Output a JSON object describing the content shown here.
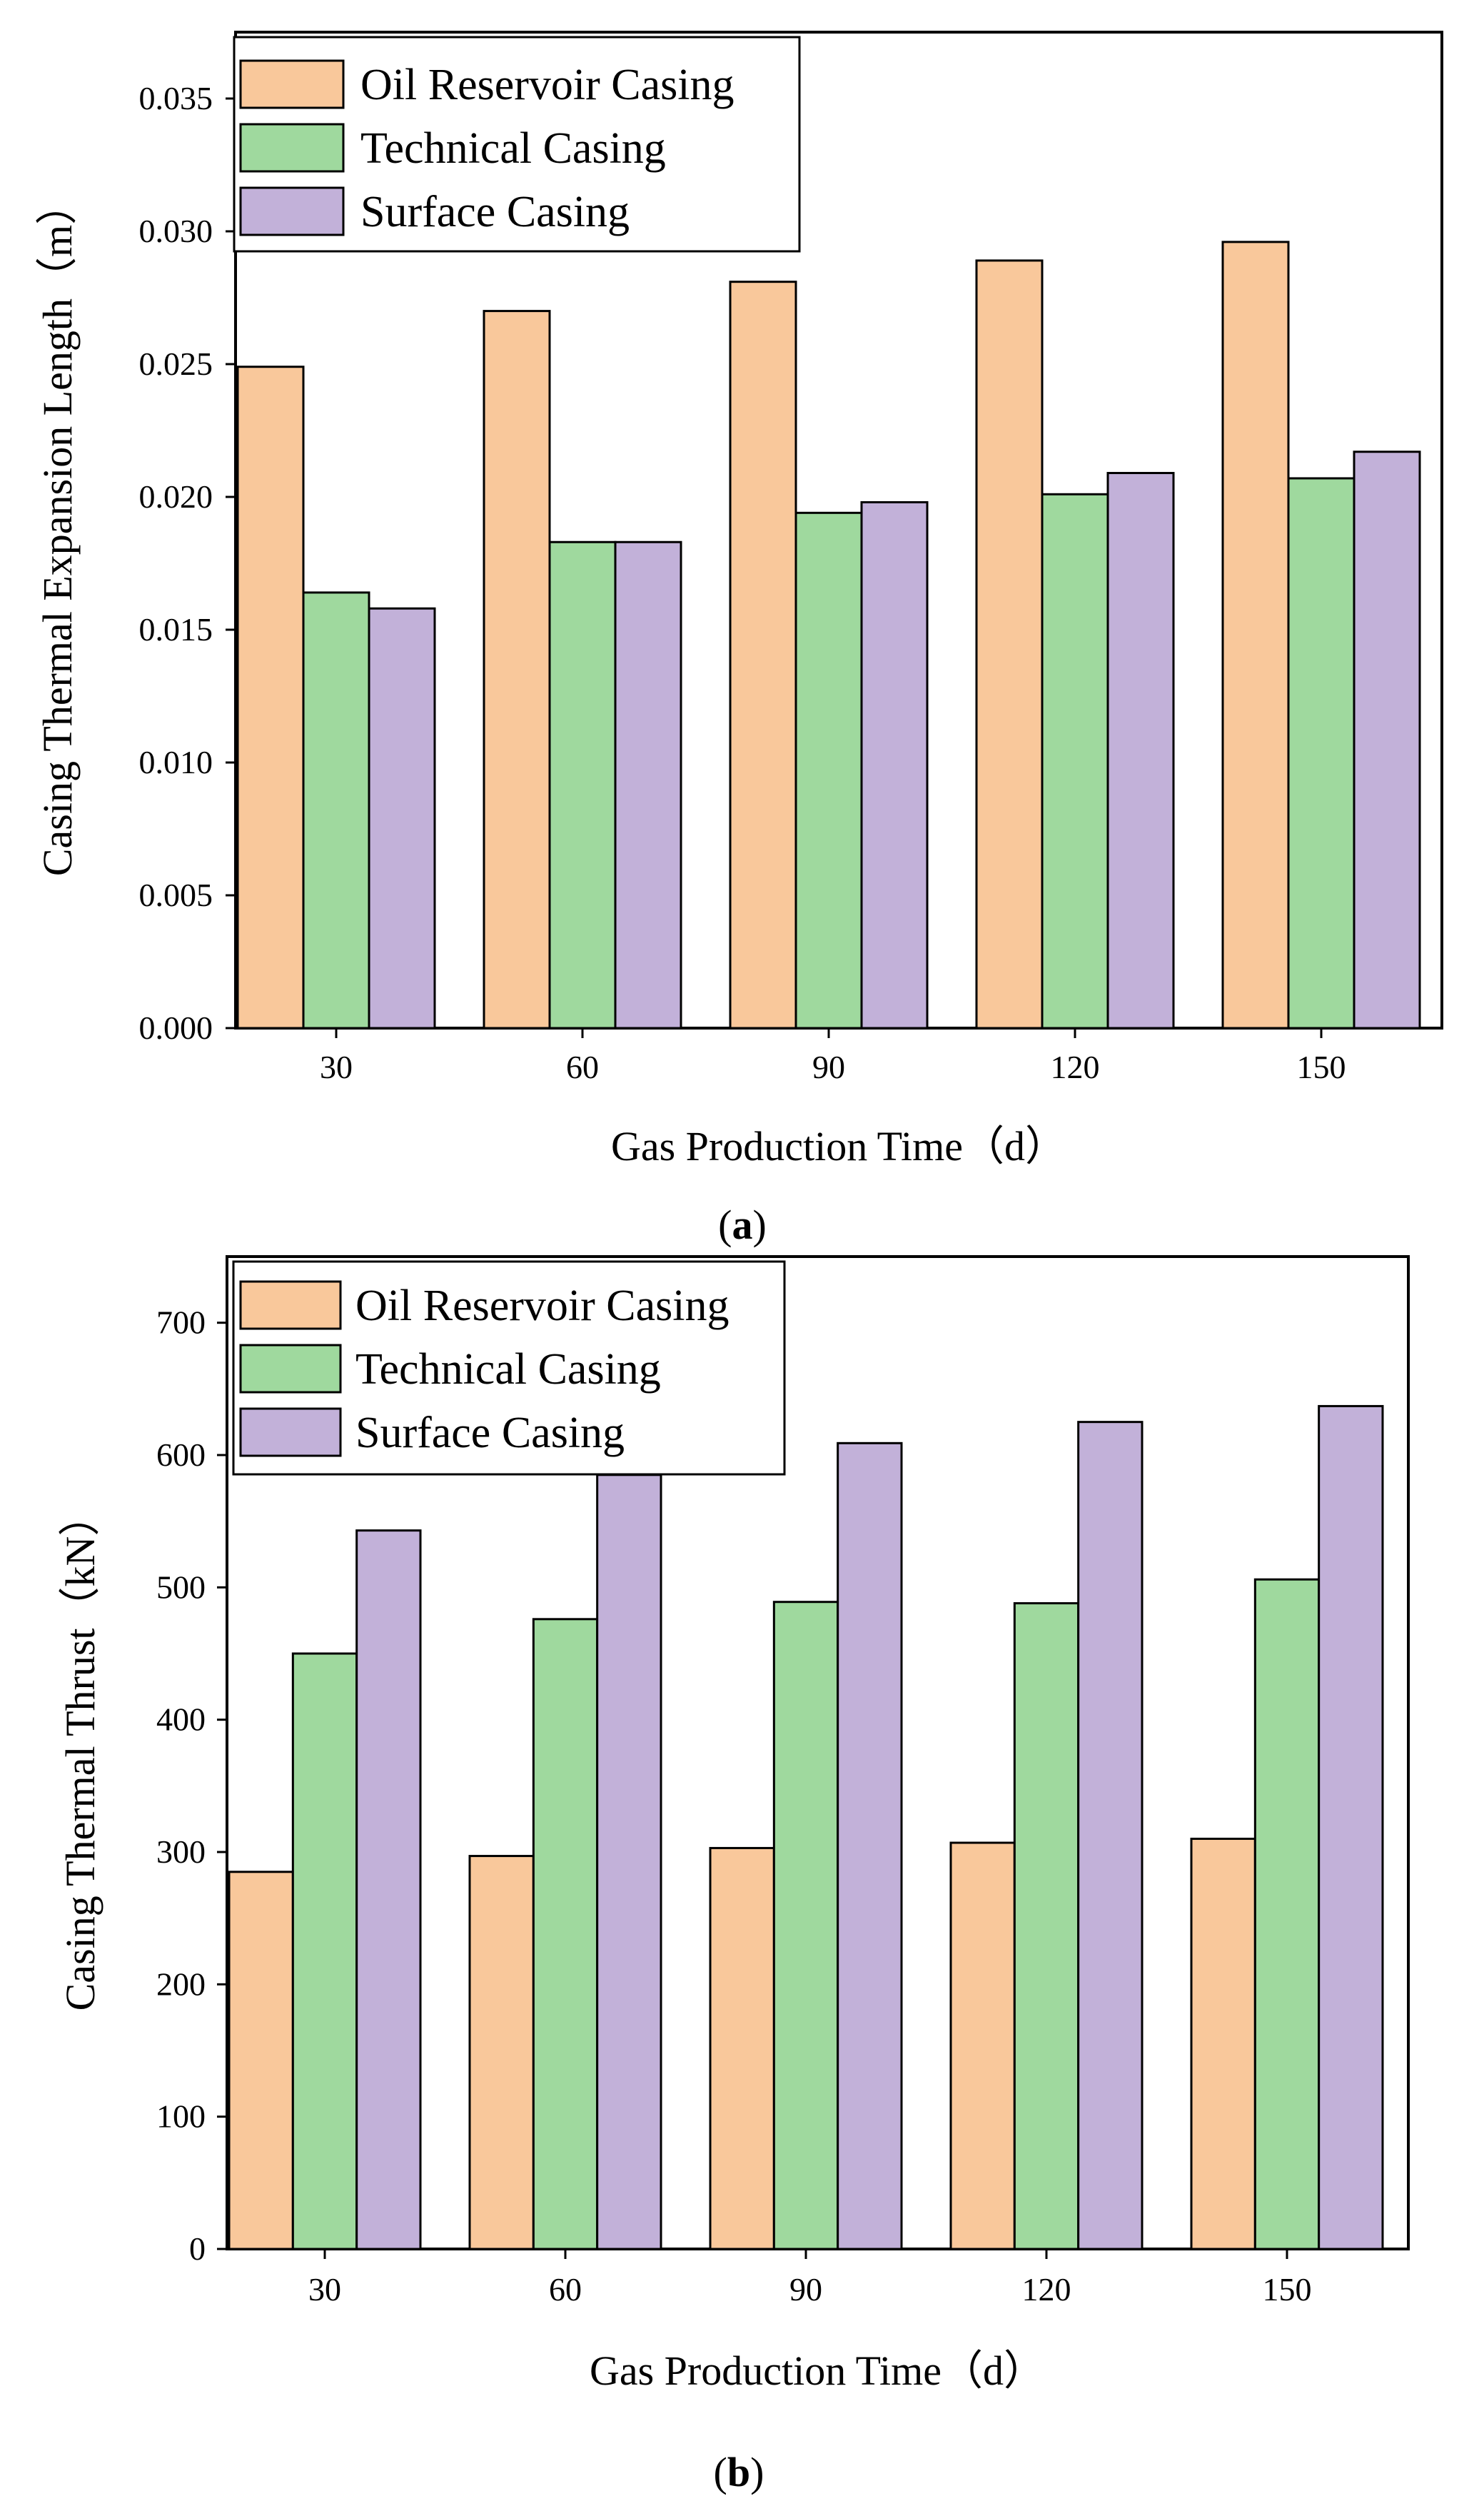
{
  "chart_data": [
    {
      "type": "bar",
      "panel_label": "a",
      "categories": [
        "30",
        "60",
        "90",
        "120",
        "150"
      ],
      "series": [
        {
          "name": "Oil Reservoir Casing",
          "values": [
            0.0249,
            0.027,
            0.0281,
            0.0289,
            0.0296
          ],
          "color": "#f9c89b"
        },
        {
          "name": "Technical Casing",
          "values": [
            0.0164,
            0.0183,
            0.0194,
            0.0201,
            0.0207
          ],
          "color": "#9fd99e"
        },
        {
          "name": "Surface Casing",
          "values": [
            0.0158,
            0.0183,
            0.0198,
            0.0209,
            0.0217
          ],
          "color": "#c2b1d9"
        }
      ],
      "xlabel": "Gas Production Time（d）",
      "ylabel": "Casing Thermal Expansion Length（m）",
      "ylim": [
        0,
        0.0375
      ],
      "yticks": [
        "0.000",
        "0.005",
        "0.010",
        "0.015",
        "0.020",
        "0.025",
        "0.030",
        "0.035"
      ],
      "ytick_values": [
        0,
        0.005,
        0.01,
        0.015,
        0.02,
        0.025,
        0.03,
        0.035
      ],
      "grid": false,
      "legend": "top-left"
    },
    {
      "type": "bar",
      "panel_label": "b",
      "categories": [
        "30",
        "60",
        "90",
        "120",
        "150"
      ],
      "series": [
        {
          "name": "Oil Reservoir Casing",
          "values": [
            285,
            297,
            303,
            307,
            310
          ],
          "color": "#f9c89b"
        },
        {
          "name": "Technical Casing",
          "values": [
            450,
            476,
            489,
            488,
            506
          ],
          "color": "#9fd99e"
        },
        {
          "name": "Surface Casing",
          "values": [
            543,
            585,
            609,
            625,
            637
          ],
          "color": "#c2b1d9"
        }
      ],
      "xlabel": "Gas Production Time（d）",
      "ylabel": "Casing Thermal Thrust（kN）",
      "ylim": [
        0,
        750
      ],
      "yticks": [
        "0",
        "100",
        "200",
        "300",
        "400",
        "500",
        "600",
        "700"
      ],
      "ytick_values": [
        0,
        100,
        200,
        300,
        400,
        500,
        600,
        700
      ],
      "grid": false,
      "legend": "top-left"
    }
  ]
}
